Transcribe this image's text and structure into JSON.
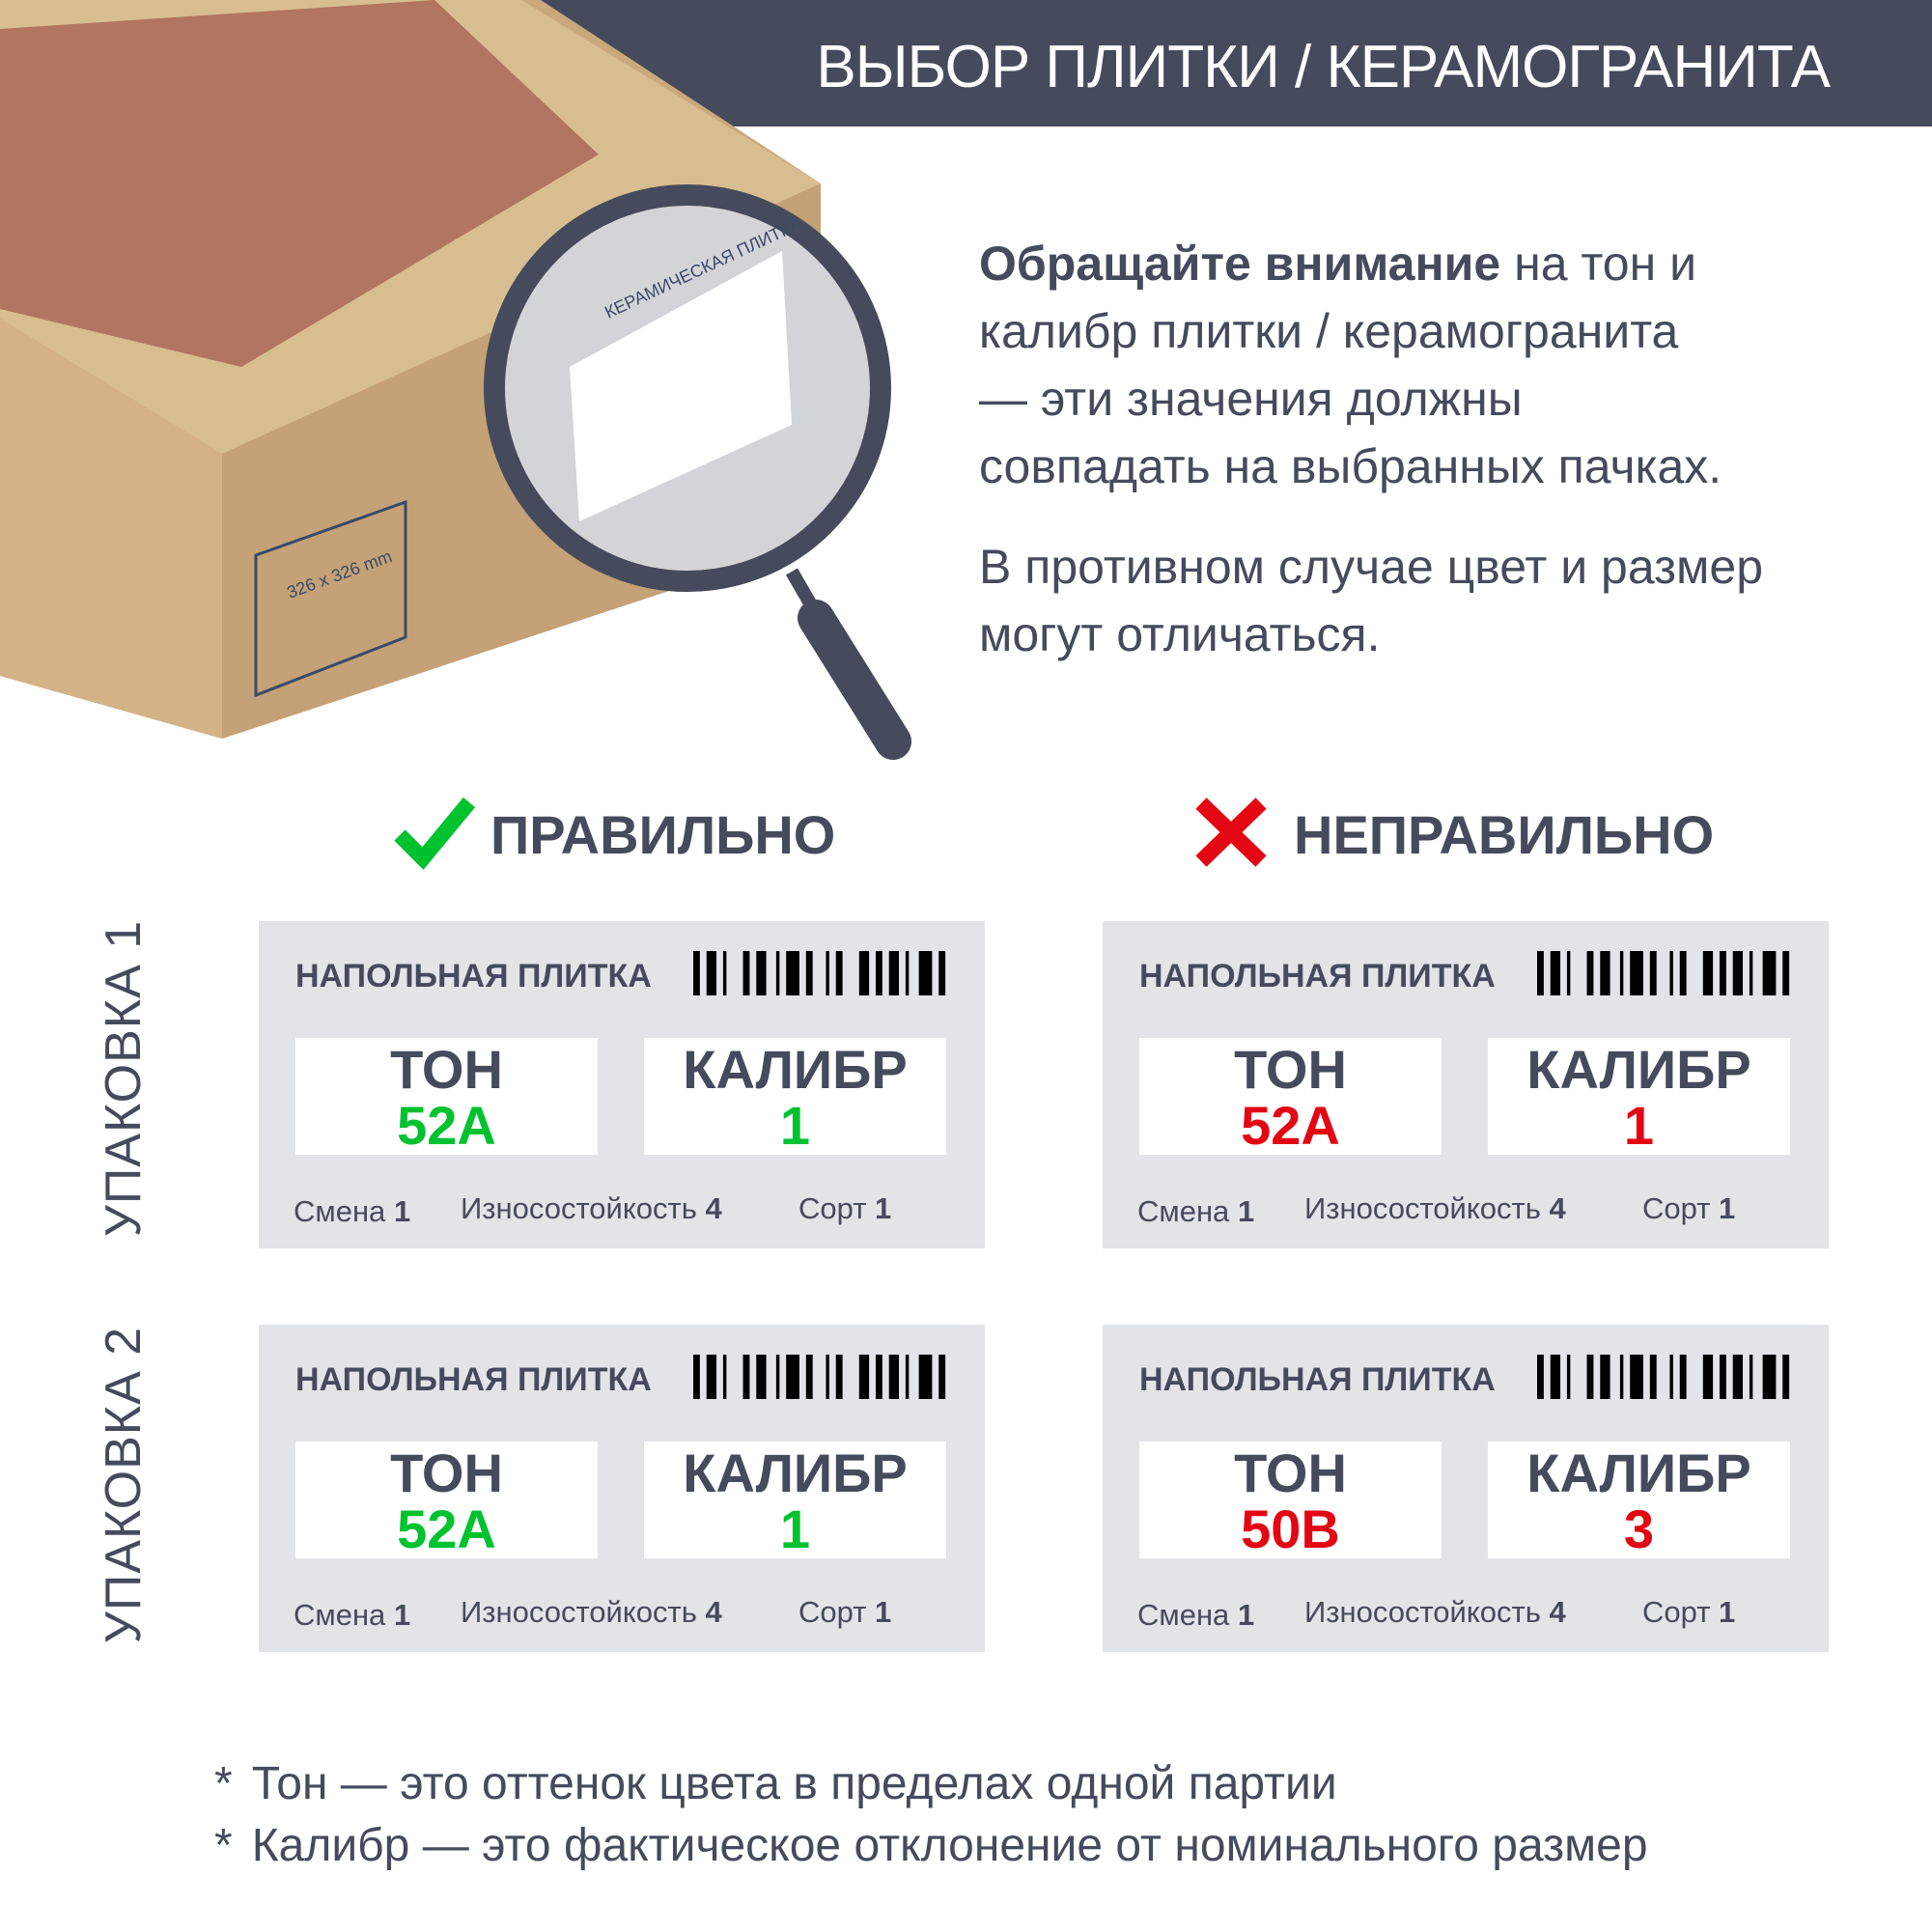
{
  "header": {
    "title": "ВЫБОР ПЛИТКИ / КЕРАМОГРАНИТА"
  },
  "photo": {
    "box_text": "КЕРАМИЧЕСКАЯ ПЛИТКА",
    "box_size": "326 x 326 mm"
  },
  "intro": {
    "bold": "Обращайте внимание",
    "rest_line1": " на тон и",
    "line2": "калибр плитки / керамогранита",
    "line3": "— эти значения должны",
    "line4": "совпадать на выбранных пачках.",
    "p2_line1": "В противном случае цвет и размер",
    "p2_line2": "могут отличаться."
  },
  "columns": {
    "correct": "ПРАВИЛЬНО",
    "wrong": "НЕПРАВИЛЬНО"
  },
  "rows": [
    "УПАКОВКА 1",
    "УПАКОВКА 2"
  ],
  "colors": {
    "dark": "#454b5c",
    "green": "#00c22f",
    "red": "#e30613",
    "card": "#e3e4e8"
  },
  "card_labels": {
    "title": "НАПОЛЬНАЯ ПЛИТКА",
    "tone": "ТОН",
    "caliber": "КАЛИБР",
    "shift": "Смена",
    "wear": "Износостойкость",
    "grade": "Сорт"
  },
  "cards": [
    {
      "tone": "52A",
      "caliber": "1",
      "shift": "1",
      "wear": "4",
      "grade": "1",
      "status": "green"
    },
    {
      "tone": "52A",
      "caliber": "1",
      "shift": "1",
      "wear": "4",
      "grade": "1",
      "status": "red"
    },
    {
      "tone": "52A",
      "caliber": "1",
      "shift": "1",
      "wear": "4",
      "grade": "1",
      "status": "green"
    },
    {
      "tone": "50B",
      "caliber": "3",
      "shift": "1",
      "wear": "4",
      "grade": "1",
      "status": "red"
    }
  ],
  "footnotes": [
    {
      "mark": "*",
      "term": "Тон",
      "text": " — это оттенок цвета в пределах одной партии"
    },
    {
      "mark": "*",
      "term": "Калибр",
      "text": " — это фактическое отклонение от номинального размер"
    }
  ]
}
